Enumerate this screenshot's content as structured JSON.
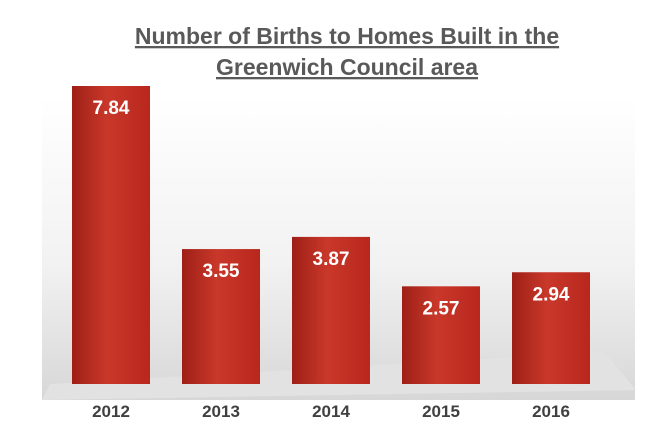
{
  "chart_data": {
    "type": "bar",
    "title": "Number of Births to Homes Built in the Greenwich Council area",
    "title_lines": [
      "Number of Births to Homes Built in the",
      "Greenwich Council area"
    ],
    "categories": [
      "2012",
      "2013",
      "2014",
      "2015",
      "2016"
    ],
    "values": [
      7.84,
      3.55,
      3.87,
      2.57,
      2.94
    ],
    "data_labels": [
      "7.84",
      "3.55",
      "3.87",
      "2.57",
      "2.94"
    ],
    "xlabel": "",
    "ylabel": "",
    "ylim": [
      0,
      8
    ],
    "grid": false,
    "legend": "none"
  },
  "colors": {
    "bar": "#b8271d",
    "bar_light": "#c9382a",
    "bar_dark": "#9e1f16",
    "title": "#595959",
    "value_text": "#ffffff",
    "tick_text": "#404040",
    "backdrop_start": "#f2f2f2",
    "backdrop_end": "#d7d7d7"
  }
}
